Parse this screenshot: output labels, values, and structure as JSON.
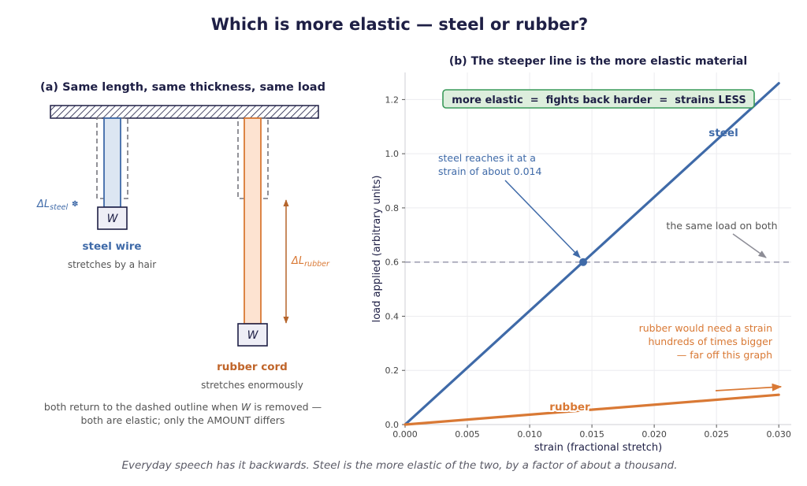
{
  "title": "Which is more elastic — steel or rubber?",
  "footer": "Everyday speech has it backwards. Steel is the more elastic of the two, by a factor of about a thousand.",
  "colors": {
    "steel": "#3f6aa8",
    "rubber": "#d97935",
    "steel_fill": "#dce6f2",
    "rubber_fill": "#fde3d1",
    "navy": "#1e1f45",
    "gray": "#555555",
    "callout_fill": "#ddeedd",
    "callout_border": "#3a9a5a"
  },
  "panel_a": {
    "title": "(a) Same length, same thickness, same load",
    "weight_label": "W",
    "delta_steel": {
      "symbol": "ΔL",
      "sub": "steel",
      "mark": "✽"
    },
    "delta_rubber": {
      "symbol": "ΔL",
      "sub": "rubber"
    },
    "steel_name": "steel wire",
    "steel_desc": "stretches by a hair",
    "rubber_name": "rubber cord",
    "rubber_desc": "stretches enormously",
    "note_line1_pre": "both return to the dashed outline when",
    "note_line1_var": "W",
    "note_line1_post": "is removed —",
    "note_line2": "both are elastic; only the AMOUNT differs"
  },
  "panel_b": {
    "title": "(b) The steeper line is the more elastic material",
    "callout": "more elastic  =  fights back harder  =  strains LESS",
    "steel_label": "steel",
    "rubber_label": "rubber",
    "steel_annot_line1": "steel reaches it at a",
    "steel_annot_line2": "strain of about 0.014",
    "same_load_annot": "the same load on both",
    "rubber_annot_line1": "rubber would need a strain",
    "rubber_annot_line2": "hundreds of times bigger",
    "rubber_annot_line3": "— far off this graph"
  },
  "chart_data": {
    "type": "line",
    "xlabel": "strain  (fractional stretch)",
    "ylabel": "load applied  (arbitrary units)",
    "xlim": [
      0,
      0.031
    ],
    "ylim": [
      0,
      1.3
    ],
    "xticks": [
      0.0,
      0.005,
      0.01,
      0.015,
      0.02,
      0.025,
      0.03
    ],
    "xtick_labels": [
      "0.000",
      "0.005",
      "0.010",
      "0.015",
      "0.020",
      "0.025",
      "0.030"
    ],
    "yticks": [
      0.0,
      0.2,
      0.4,
      0.6,
      0.8,
      1.0,
      1.2
    ],
    "ytick_labels": [
      "0.0",
      "0.2",
      "0.4",
      "0.6",
      "0.8",
      "1.0",
      "1.2"
    ],
    "grid": true,
    "series": [
      {
        "name": "steel",
        "x": [
          0,
          0.03
        ],
        "y": [
          0,
          1.26
        ]
      },
      {
        "name": "rubber",
        "x": [
          0,
          0.03
        ],
        "y": [
          0,
          0.11
        ]
      }
    ],
    "reference_line_y": 0.6,
    "marked_point": {
      "x": 0.0143,
      "y": 0.6
    }
  }
}
